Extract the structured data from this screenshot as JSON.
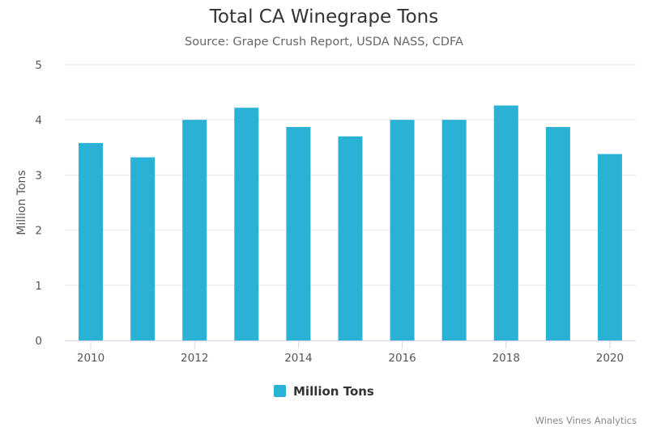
{
  "title": "Total CA Winegrape Tons",
  "subtitle": "Source: Grape Crush Report, USDA NASS, CDFA",
  "credits": "Wines Vines Analytics",
  "colors": {
    "bar": "#29b1d6",
    "grid": "#e6e6e6",
    "axis": "#ccd6eb"
  },
  "chart_data": {
    "type": "bar",
    "categories": [
      2010,
      2011,
      2012,
      2013,
      2014,
      2015,
      2016,
      2017,
      2018,
      2019,
      2020
    ],
    "x_tick_labels": [
      "2010",
      "2012",
      "2014",
      "2016",
      "2018",
      "2020"
    ],
    "series": [
      {
        "name": "Million Tons",
        "values": [
          3.58,
          3.32,
          4.0,
          4.22,
          3.87,
          3.7,
          4.0,
          4.0,
          4.26,
          3.87,
          3.38
        ]
      }
    ],
    "ylabel": "Million Tons",
    "xlabel": "",
    "ylim": [
      0,
      5
    ],
    "yticks": [
      0,
      1,
      2,
      3,
      4,
      5
    ],
    "grid": true,
    "legend": "bottom-center"
  }
}
